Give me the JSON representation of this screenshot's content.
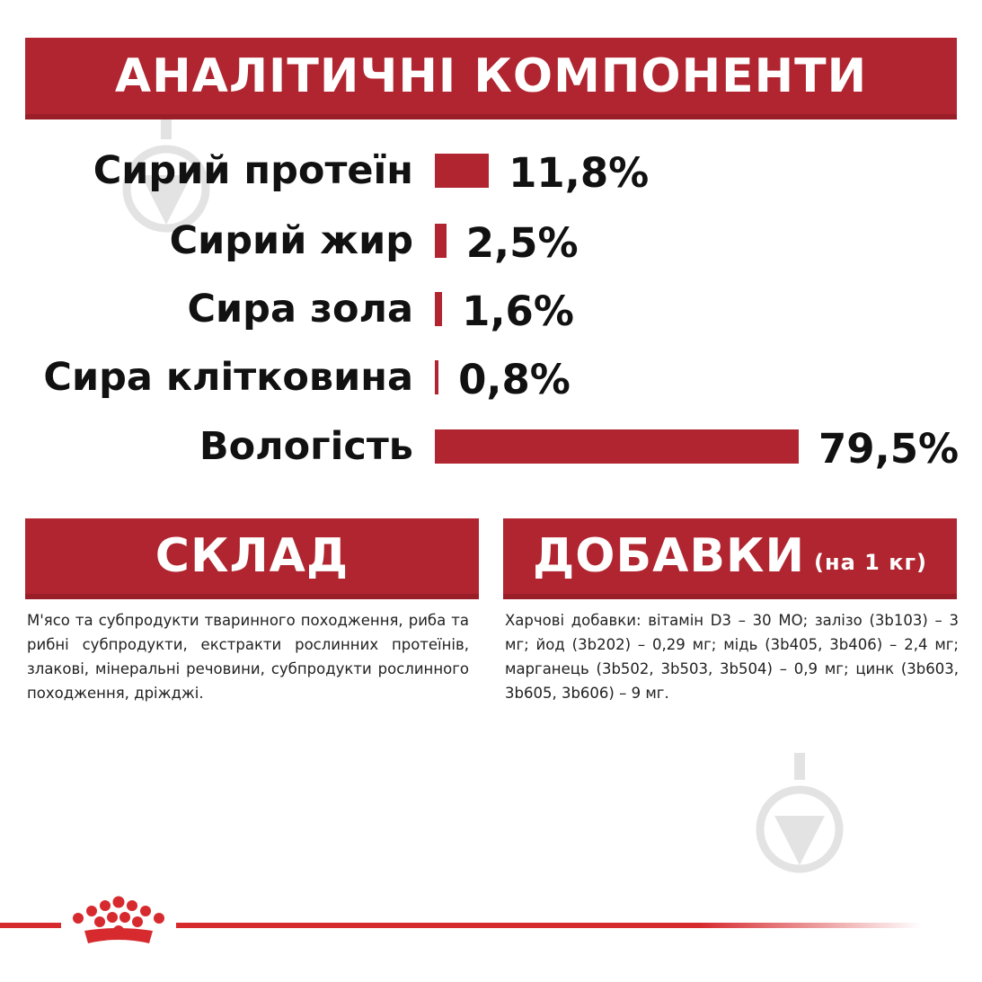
{
  "header": {
    "title": "АНАЛІТИЧНІ КОМПОНЕНТИ"
  },
  "chart_data": {
    "type": "bar",
    "title": "АНАЛІТИЧНІ КОМПОНЕНТИ",
    "orientation": "horizontal",
    "unit": "%",
    "categories": [
      "Сирий протеїн",
      "Сирий жир",
      "Сира зола",
      "Сира клітковина",
      "Вологість"
    ],
    "values": [
      11.8,
      2.5,
      1.6,
      0.8,
      79.5
    ],
    "value_labels": [
      "11,8%",
      "2,5%",
      "1,6%",
      "0,8%",
      "79,5%"
    ],
    "bar_color": "#b0252f",
    "grid": false,
    "legend": "none"
  },
  "composition": {
    "title": "СКЛАД",
    "text": "М'ясо та субпродукти тваринного походження, риба та рибні субпродукти, екстракти рослинних протеїнів, злакові, мінеральні речовини, субпродукти рослинного походження, дріжджі."
  },
  "additives": {
    "title": "ДОБАВКИ",
    "subtitle": "(на 1 кг)",
    "text": "Харчові добавки: вітамін D3 – 30 МО; залізо (3b103) – 3 мг; йод (3b202) – 0,29 мг; мідь (3b405, 3b406) – 2,4 мг; марганець (3b502, 3b503, 3b504) – 0,9 мг; цинк (3b603, 3b605, 3b606) – 9 мг."
  },
  "colors": {
    "accent": "#b0252f",
    "footer_line": "#d62a2e",
    "watermark": "#d9d9d9"
  },
  "icons": {
    "brand": "crown-logo-icon",
    "watermark": "watermark-drop-icon"
  }
}
